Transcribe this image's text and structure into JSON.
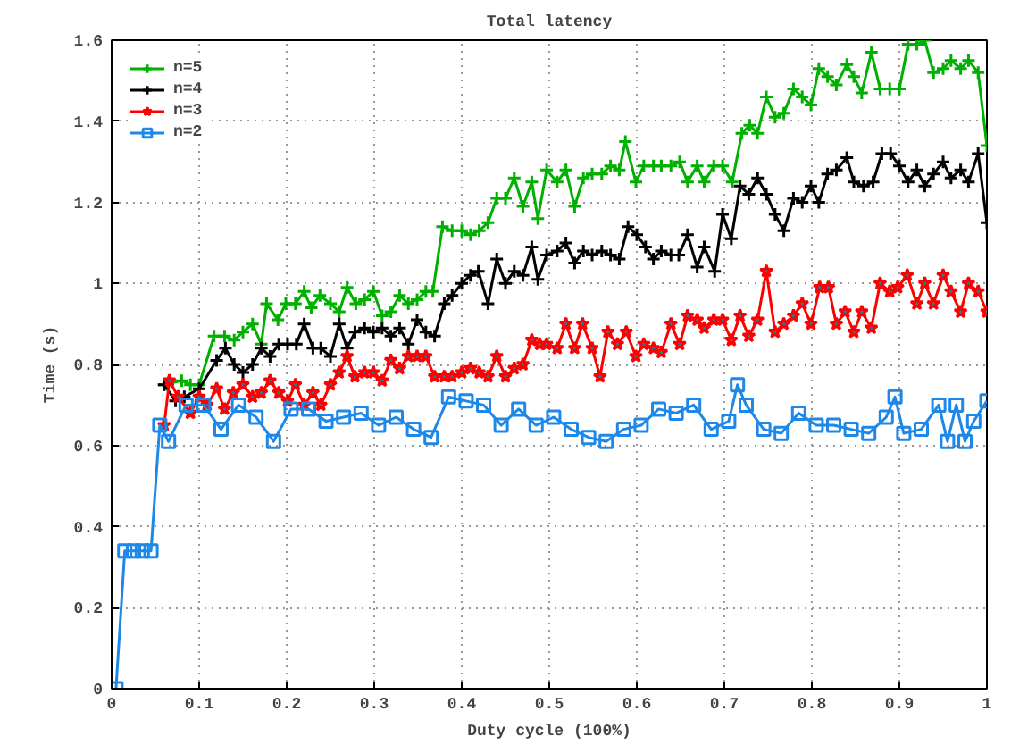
{
  "chart_data": {
    "type": "line",
    "title": "Total latency",
    "xlabel": "Duty cycle (100%)",
    "ylabel": "Time (s)",
    "xlim": [
      0,
      1
    ],
    "ylim": [
      0,
      1.6
    ],
    "xticks": [
      0,
      0.1,
      0.2,
      0.3,
      0.4,
      0.5,
      0.6,
      0.7,
      0.8,
      0.9,
      1
    ],
    "yticks": [
      0,
      0.2,
      0.4,
      0.6,
      0.8,
      1,
      1.2,
      1.4,
      1.6
    ],
    "grid": true,
    "legend": "top left",
    "line_style": "solid",
    "series": [
      {
        "name": "n=5",
        "color": "#00b000",
        "marker": "cross",
        "x": [
          0.06,
          0.08,
          0.09,
          0.1,
          0.117,
          0.129,
          0.14,
          0.15,
          0.161,
          0.171,
          0.177,
          0.19,
          0.199,
          0.21,
          0.22,
          0.228,
          0.238,
          0.25,
          0.26,
          0.269,
          0.279,
          0.289,
          0.299,
          0.309,
          0.319,
          0.329,
          0.339,
          0.349,
          0.359,
          0.367,
          0.378,
          0.389,
          0.4,
          0.41,
          0.42,
          0.43,
          0.44,
          0.45,
          0.46,
          0.47,
          0.48,
          0.487,
          0.497,
          0.509,
          0.519,
          0.529,
          0.539,
          0.549,
          0.56,
          0.57,
          0.58,
          0.587,
          0.599,
          0.608,
          0.619,
          0.628,
          0.639,
          0.649,
          0.658,
          0.669,
          0.677,
          0.688,
          0.698,
          0.709,
          0.72,
          0.729,
          0.738,
          0.748,
          0.758,
          0.768,
          0.779,
          0.789,
          0.799,
          0.808,
          0.818,
          0.828,
          0.84,
          0.848,
          0.857,
          0.868,
          0.878,
          0.889,
          0.9,
          0.91,
          0.92,
          0.929,
          0.939,
          0.95,
          0.959,
          0.97,
          0.979,
          0.99,
          1
        ],
        "values": [
          0.75,
          0.76,
          0.75,
          0.75,
          0.87,
          0.87,
          0.86,
          0.88,
          0.9,
          0.85,
          0.95,
          0.91,
          0.95,
          0.95,
          0.98,
          0.94,
          0.97,
          0.95,
          0.93,
          0.99,
          0.95,
          0.96,
          0.98,
          0.92,
          0.93,
          0.97,
          0.95,
          0.96,
          0.98,
          0.98,
          1.14,
          1.13,
          1.13,
          1.12,
          1.13,
          1.15,
          1.21,
          1.21,
          1.26,
          1.19,
          1.25,
          1.16,
          1.28,
          1.25,
          1.28,
          1.19,
          1.26,
          1.27,
          1.27,
          1.29,
          1.28,
          1.35,
          1.25,
          1.29,
          1.29,
          1.29,
          1.29,
          1.3,
          1.25,
          1.29,
          1.25,
          1.29,
          1.29,
          1.25,
          1.37,
          1.39,
          1.37,
          1.46,
          1.41,
          1.42,
          1.48,
          1.46,
          1.44,
          1.53,
          1.51,
          1.49,
          1.54,
          1.51,
          1.47,
          1.57,
          1.48,
          1.48,
          1.48,
          1.59,
          1.59,
          1.6,
          1.52,
          1.53,
          1.55,
          1.53,
          1.55,
          1.52,
          1.34
        ]
      },
      {
        "name": "n=4",
        "color": "#000000",
        "marker": "cross",
        "x": [
          0.06,
          0.073,
          0.083,
          0.1,
          0.12,
          0.13,
          0.14,
          0.15,
          0.161,
          0.171,
          0.181,
          0.191,
          0.201,
          0.211,
          0.22,
          0.23,
          0.239,
          0.25,
          0.26,
          0.269,
          0.278,
          0.289,
          0.299,
          0.309,
          0.319,
          0.329,
          0.339,
          0.349,
          0.359,
          0.369,
          0.38,
          0.389,
          0.4,
          0.41,
          0.419,
          0.43,
          0.44,
          0.45,
          0.46,
          0.47,
          0.48,
          0.487,
          0.497,
          0.509,
          0.519,
          0.529,
          0.539,
          0.549,
          0.56,
          0.57,
          0.58,
          0.59,
          0.6,
          0.61,
          0.619,
          0.628,
          0.639,
          0.648,
          0.658,
          0.669,
          0.677,
          0.689,
          0.698,
          0.708,
          0.718,
          0.728,
          0.738,
          0.748,
          0.758,
          0.768,
          0.779,
          0.789,
          0.799,
          0.808,
          0.818,
          0.828,
          0.84,
          0.848,
          0.859,
          0.87,
          0.88,
          0.89,
          0.9,
          0.91,
          0.92,
          0.929,
          0.939,
          0.95,
          0.959,
          0.97,
          0.979,
          0.99,
          1
        ],
        "values": [
          0.75,
          0.71,
          0.72,
          0.74,
          0.81,
          0.84,
          0.8,
          0.78,
          0.8,
          0.84,
          0.82,
          0.85,
          0.85,
          0.85,
          0.9,
          0.84,
          0.84,
          0.82,
          0.9,
          0.84,
          0.88,
          0.89,
          0.88,
          0.89,
          0.87,
          0.89,
          0.85,
          0.91,
          0.88,
          0.87,
          0.95,
          0.97,
          1,
          1.02,
          1.03,
          0.95,
          1.06,
          1,
          1.03,
          1.02,
          1.09,
          1.01,
          1.07,
          1.08,
          1.1,
          1.05,
          1.08,
          1.07,
          1.08,
          1.07,
          1.06,
          1.14,
          1.12,
          1.09,
          1.06,
          1.08,
          1.07,
          1.07,
          1.12,
          1.04,
          1.09,
          1.03,
          1.17,
          1.11,
          1.24,
          1.22,
          1.26,
          1.22,
          1.17,
          1.13,
          1.21,
          1.2,
          1.24,
          1.2,
          1.27,
          1.28,
          1.31,
          1.25,
          1.24,
          1.25,
          1.32,
          1.32,
          1.29,
          1.25,
          1.28,
          1.24,
          1.27,
          1.3,
          1.26,
          1.28,
          1.25,
          1.32,
          1.15
        ]
      },
      {
        "name": "n=3",
        "color": "#ff0000",
        "marker": "star",
        "x": [
          0.06,
          0.066,
          0.076,
          0.09,
          0.1,
          0.109,
          0.12,
          0.129,
          0.139,
          0.15,
          0.161,
          0.171,
          0.181,
          0.191,
          0.201,
          0.21,
          0.22,
          0.23,
          0.239,
          0.25,
          0.26,
          0.269,
          0.278,
          0.289,
          0.299,
          0.309,
          0.319,
          0.329,
          0.339,
          0.349,
          0.359,
          0.369,
          0.38,
          0.389,
          0.4,
          0.41,
          0.42,
          0.43,
          0.44,
          0.45,
          0.46,
          0.47,
          0.48,
          0.489,
          0.497,
          0.509,
          0.519,
          0.529,
          0.538,
          0.549,
          0.558,
          0.567,
          0.578,
          0.588,
          0.599,
          0.608,
          0.619,
          0.628,
          0.639,
          0.649,
          0.658,
          0.669,
          0.677,
          0.688,
          0.698,
          0.708,
          0.718,
          0.728,
          0.738,
          0.748,
          0.758,
          0.768,
          0.779,
          0.789,
          0.799,
          0.809,
          0.819,
          0.828,
          0.838,
          0.848,
          0.857,
          0.868,
          0.878,
          0.889,
          0.898,
          0.909,
          0.92,
          0.929,
          0.939,
          0.95,
          0.959,
          0.97,
          0.979,
          0.99,
          1
        ],
        "values": [
          0.65,
          0.76,
          0.72,
          0.68,
          0.72,
          0.7,
          0.74,
          0.69,
          0.73,
          0.75,
          0.72,
          0.73,
          0.76,
          0.73,
          0.71,
          0.75,
          0.7,
          0.73,
          0.7,
          0.75,
          0.78,
          0.82,
          0.77,
          0.78,
          0.78,
          0.76,
          0.81,
          0.79,
          0.82,
          0.82,
          0.82,
          0.77,
          0.77,
          0.77,
          0.78,
          0.79,
          0.78,
          0.77,
          0.82,
          0.77,
          0.79,
          0.8,
          0.86,
          0.85,
          0.85,
          0.84,
          0.9,
          0.84,
          0.9,
          0.84,
          0.77,
          0.88,
          0.85,
          0.88,
          0.82,
          0.85,
          0.84,
          0.83,
          0.9,
          0.85,
          0.92,
          0.91,
          0.89,
          0.91,
          0.91,
          0.86,
          0.92,
          0.87,
          0.91,
          1.03,
          0.88,
          0.9,
          0.92,
          0.95,
          0.9,
          0.99,
          0.99,
          0.9,
          0.93,
          0.88,
          0.93,
          0.89,
          1,
          0.98,
          0.99,
          1.02,
          0.95,
          1,
          0.95,
          1.02,
          0.98,
          0.93,
          1,
          0.98,
          0.93
        ]
      },
      {
        "name": "n=2",
        "color": "#1e88e8",
        "marker": "square",
        "x": [
          0.005,
          0.015,
          0.025,
          0.035,
          0.045,
          0.055,
          0.065,
          0.085,
          0.105,
          0.125,
          0.145,
          0.165,
          0.185,
          0.205,
          0.225,
          0.245,
          0.265,
          0.285,
          0.305,
          0.325,
          0.345,
          0.365,
          0.385,
          0.405,
          0.425,
          0.445,
          0.465,
          0.485,
          0.505,
          0.525,
          0.545,
          0.565,
          0.585,
          0.605,
          0.625,
          0.645,
          0.665,
          0.685,
          0.705,
          0.715,
          0.725,
          0.745,
          0.765,
          0.785,
          0.805,
          0.825,
          0.845,
          0.865,
          0.885,
          0.895,
          0.905,
          0.925,
          0.945,
          0.955,
          0.965,
          0.975,
          0.985,
          1
        ],
        "values": [
          0,
          0.34,
          0.34,
          0.34,
          0.34,
          0.65,
          0.61,
          0.7,
          0.7,
          0.64,
          0.7,
          0.67,
          0.61,
          0.69,
          0.69,
          0.66,
          0.67,
          0.68,
          0.65,
          0.67,
          0.64,
          0.62,
          0.72,
          0.71,
          0.7,
          0.65,
          0.69,
          0.65,
          0.67,
          0.64,
          0.62,
          0.61,
          0.64,
          0.65,
          0.69,
          0.68,
          0.7,
          0.64,
          0.66,
          0.75,
          0.7,
          0.64,
          0.63,
          0.68,
          0.65,
          0.65,
          0.64,
          0.63,
          0.67,
          0.72,
          0.63,
          0.64,
          0.7,
          0.61,
          0.7,
          0.61,
          0.66,
          0.71
        ]
      }
    ]
  }
}
